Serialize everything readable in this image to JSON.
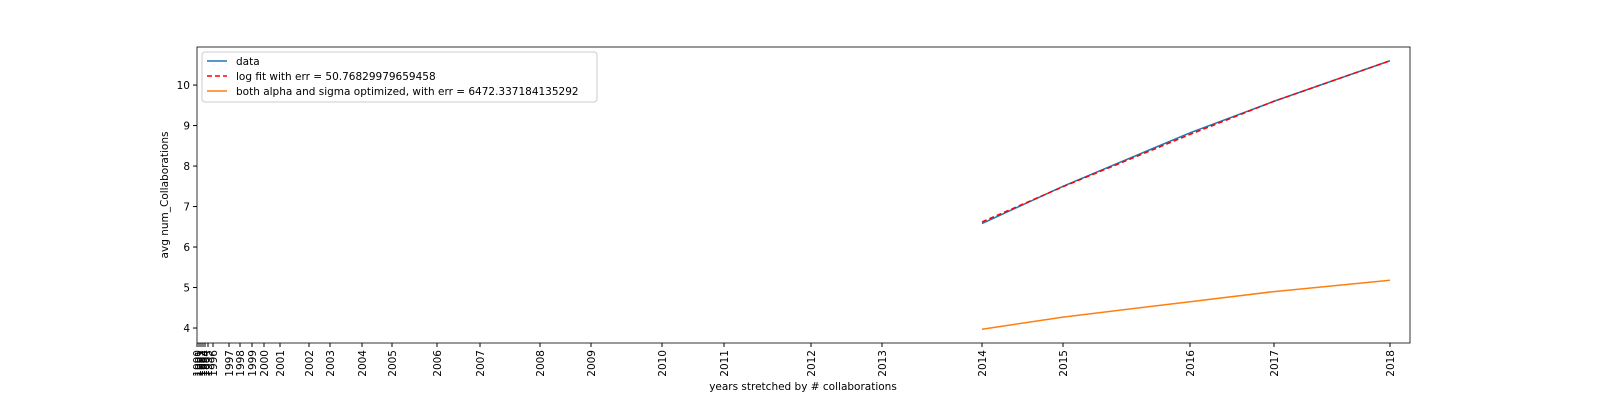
{
  "chart_data": {
    "type": "line",
    "xlabel": "years stretched by # collaborations",
    "ylabel": "avg num_Collaborations",
    "xlim": [
      0,
      1213
    ],
    "ylim": [
      3.63,
      10.94
    ],
    "xticks": [
      {
        "value": 0,
        "label": "1990"
      },
      {
        "value": 2,
        "label": "1991"
      },
      {
        "value": 4,
        "label": "1992"
      },
      {
        "value": 6,
        "label": "1993"
      },
      {
        "value": 8,
        "label": "1994"
      },
      {
        "value": 11,
        "label": "1995"
      },
      {
        "value": 16,
        "label": "1996"
      },
      {
        "value": 32,
        "label": "1997"
      },
      {
        "value": 43,
        "label": "1998"
      },
      {
        "value": 55,
        "label": "1999"
      },
      {
        "value": 67,
        "label": "2000"
      },
      {
        "value": 83,
        "label": "2001"
      },
      {
        "value": 112,
        "label": "2002"
      },
      {
        "value": 133,
        "label": "2003"
      },
      {
        "value": 165,
        "label": "2004"
      },
      {
        "value": 195,
        "label": "2005"
      },
      {
        "value": 240,
        "label": "2006"
      },
      {
        "value": 283,
        "label": "2007"
      },
      {
        "value": 343,
        "label": "2008"
      },
      {
        "value": 394,
        "label": "2009"
      },
      {
        "value": 465,
        "label": "2010"
      },
      {
        "value": 527,
        "label": "2011"
      },
      {
        "value": 614,
        "label": "2012"
      },
      {
        "value": 685,
        "label": "2013"
      },
      {
        "value": 785,
        "label": "2014"
      },
      {
        "value": 866,
        "label": "2015"
      },
      {
        "value": 993,
        "label": "2016"
      },
      {
        "value": 1077,
        "label": "2017"
      },
      {
        "value": 1193,
        "label": "2018"
      }
    ],
    "yticks": [
      4,
      5,
      6,
      7,
      8,
      9,
      10
    ],
    "legend": "upper left",
    "series": [
      {
        "name": "data",
        "color": "#1f77b4",
        "dash": false,
        "x": [
          785,
          866,
          993,
          1077,
          1193
        ],
        "values": [
          6.58,
          7.5,
          8.82,
          9.6,
          10.6
        ]
      },
      {
        "name": "log fit with err = 50.76829979659458",
        "color": "#ff0000",
        "dash": true,
        "x": [
          785,
          866,
          993,
          1077,
          1193
        ],
        "values": [
          6.62,
          7.49,
          8.78,
          9.6,
          10.6
        ]
      },
      {
        "name": "both alpha and sigma optimized, with err = 6472.337184135292",
        "color": "#ff7f0e",
        "dash": false,
        "x": [
          785,
          866,
          993,
          1077,
          1193
        ],
        "values": [
          3.97,
          4.27,
          4.65,
          4.9,
          5.18
        ]
      }
    ]
  }
}
